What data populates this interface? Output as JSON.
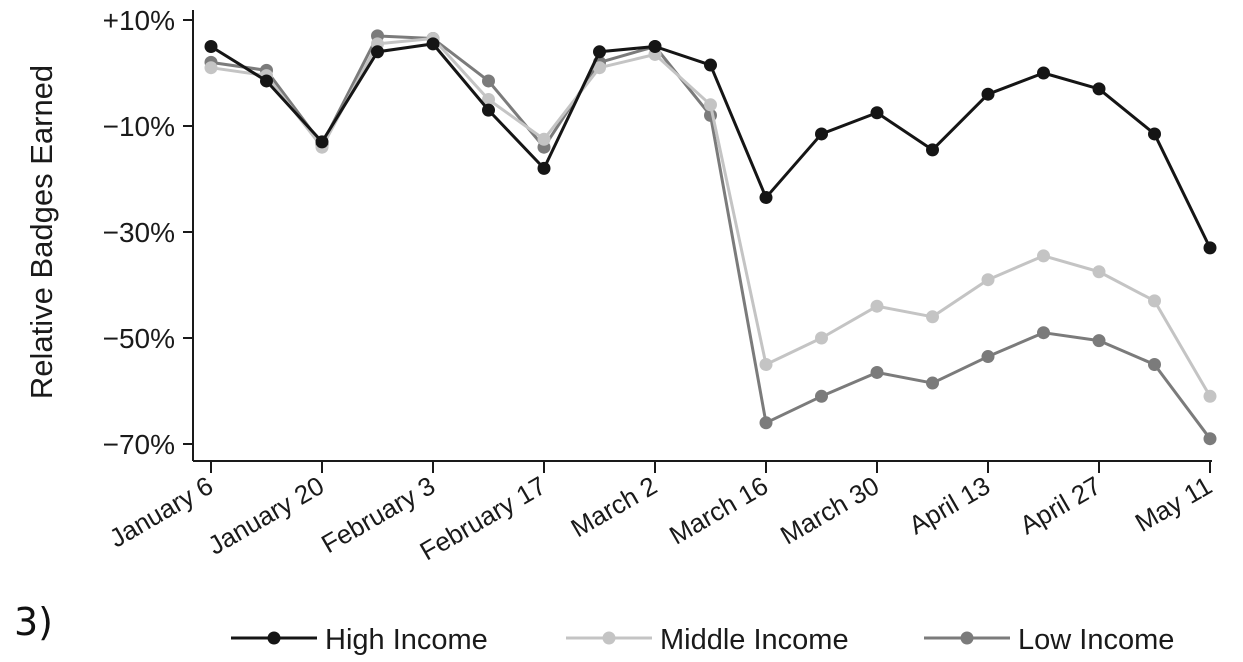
{
  "panel_label": "3)",
  "chart_data": {
    "type": "line",
    "title": "",
    "xlabel": "",
    "ylabel": "Relative Badges Earned",
    "ylim": [
      -72,
      12
    ],
    "yticks": [
      10,
      -10,
      -30,
      -50,
      -70
    ],
    "ytick_labels": [
      "+10%",
      "−10%",
      "−30%",
      "−50%",
      "−70%"
    ],
    "x": [
      "January 6",
      "January 13",
      "January 20",
      "January 27",
      "February 3",
      "February 10",
      "February 17",
      "February 24",
      "March 2",
      "March 9",
      "March 16",
      "March 23",
      "March 30",
      "April 6",
      "April 13",
      "April 20",
      "April 27",
      "May 4",
      "May 11"
    ],
    "xtick_labels": [
      "January 6",
      "January 20",
      "February 3",
      "February 17",
      "March 2",
      "March 16",
      "March 30",
      "April 13",
      "April 27",
      "May 11"
    ],
    "grid": false,
    "legend_position": "bottom",
    "series": [
      {
        "name": "High Income",
        "color": "#151515",
        "values": [
          5,
          -1.5,
          -13,
          4,
          5.5,
          -7,
          -18,
          4,
          5,
          1.5,
          -23.5,
          -11.5,
          -7.5,
          -14.5,
          -4,
          0,
          -3,
          -11.5,
          -33
        ]
      },
      {
        "name": "Middle Income",
        "color": "#c4c4c4",
        "values": [
          1,
          -0.5,
          -14,
          5.5,
          6.5,
          -5,
          -12.5,
          1,
          3.5,
          -6,
          -55,
          -50,
          -44,
          -46,
          -39,
          -34.5,
          -37.5,
          -43,
          -61
        ]
      },
      {
        "name": "Low Income",
        "color": "#7b7b7b",
        "values": [
          2,
          0.5,
          -13.5,
          7,
          6.5,
          -1.5,
          -14,
          2,
          5,
          -8,
          -66,
          -61,
          -56.5,
          -58.5,
          -53.5,
          -49,
          -50.5,
          -55,
          -69
        ]
      }
    ]
  }
}
